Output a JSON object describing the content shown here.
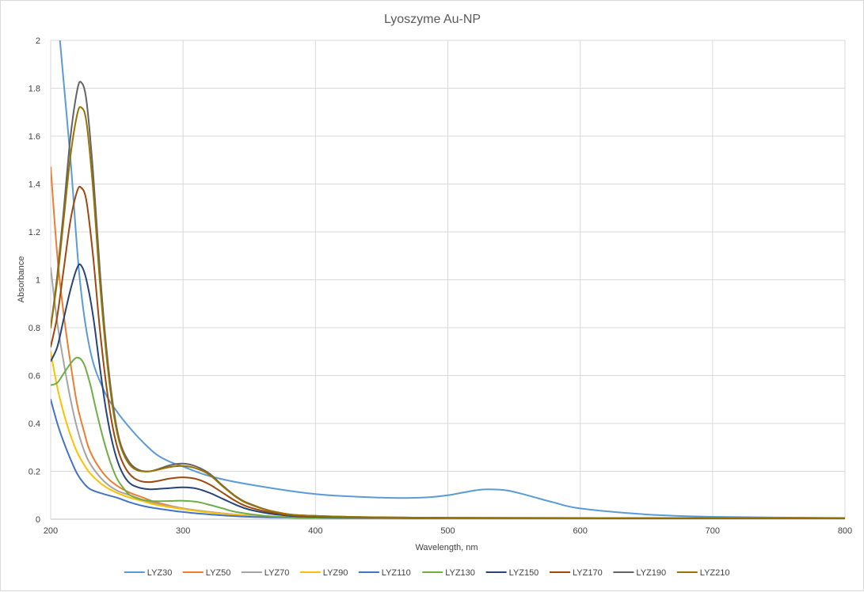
{
  "chart_data": {
    "type": "line",
    "title": "Lyoszyme Au-NP",
    "xlabel": "Wavelength, nm",
    "ylabel": "Absorbance",
    "xlim": [
      200,
      800
    ],
    "ylim": [
      0,
      2
    ],
    "x_ticks": [
      200,
      300,
      400,
      500,
      600,
      700,
      800
    ],
    "y_ticks": [
      0,
      0.2,
      0.4,
      0.6,
      0.8,
      1,
      1.2,
      1.4,
      1.6,
      1.8,
      2
    ],
    "grid": true,
    "legend_position": "bottom",
    "series": [
      {
        "name": "LYZ30",
        "color": "#5b9bd5",
        "points": [
          [
            207,
            2.0
          ],
          [
            215,
            1.5
          ],
          [
            222,
            1.0
          ],
          [
            230,
            0.7
          ],
          [
            240,
            0.54
          ],
          [
            250,
            0.45
          ],
          [
            260,
            0.38
          ],
          [
            270,
            0.32
          ],
          [
            280,
            0.27
          ],
          [
            290,
            0.24
          ],
          [
            300,
            0.22
          ],
          [
            320,
            0.18
          ],
          [
            350,
            0.145
          ],
          [
            400,
            0.105
          ],
          [
            450,
            0.09
          ],
          [
            480,
            0.09
          ],
          [
            500,
            0.1
          ],
          [
            520,
            0.12
          ],
          [
            530,
            0.125
          ],
          [
            545,
            0.12
          ],
          [
            560,
            0.1
          ],
          [
            580,
            0.07
          ],
          [
            600,
            0.045
          ],
          [
            650,
            0.02
          ],
          [
            700,
            0.01
          ],
          [
            800,
            0.005
          ]
        ]
      },
      {
        "name": "LYZ50",
        "color": "#ed7d31",
        "points": [
          [
            200,
            1.47
          ],
          [
            205,
            1.1
          ],
          [
            210,
            0.85
          ],
          [
            215,
            0.65
          ],
          [
            220,
            0.48
          ],
          [
            225,
            0.37
          ],
          [
            230,
            0.28
          ],
          [
            240,
            0.19
          ],
          [
            250,
            0.14
          ],
          [
            260,
            0.11
          ],
          [
            270,
            0.09
          ],
          [
            280,
            0.07
          ],
          [
            300,
            0.045
          ],
          [
            320,
            0.03
          ],
          [
            350,
            0.015
          ],
          [
            400,
            0.007
          ],
          [
            500,
            0.004
          ],
          [
            800,
            0.002
          ]
        ]
      },
      {
        "name": "LYZ70",
        "color": "#a5a5a5",
        "points": [
          [
            200,
            1.05
          ],
          [
            205,
            0.82
          ],
          [
            210,
            0.65
          ],
          [
            215,
            0.5
          ],
          [
            220,
            0.38
          ],
          [
            225,
            0.29
          ],
          [
            230,
            0.23
          ],
          [
            240,
            0.16
          ],
          [
            250,
            0.12
          ],
          [
            260,
            0.1
          ],
          [
            270,
            0.08
          ],
          [
            280,
            0.065
          ],
          [
            300,
            0.045
          ],
          [
            320,
            0.03
          ],
          [
            350,
            0.015
          ],
          [
            400,
            0.007
          ],
          [
            500,
            0.004
          ],
          [
            800,
            0.002
          ]
        ]
      },
      {
        "name": "LYZ90",
        "color": "#ffc000",
        "points": [
          [
            200,
            0.7
          ],
          [
            205,
            0.55
          ],
          [
            210,
            0.44
          ],
          [
            215,
            0.35
          ],
          [
            220,
            0.28
          ],
          [
            225,
            0.23
          ],
          [
            230,
            0.19
          ],
          [
            240,
            0.14
          ],
          [
            250,
            0.11
          ],
          [
            260,
            0.09
          ],
          [
            270,
            0.075
          ],
          [
            280,
            0.06
          ],
          [
            300,
            0.042
          ],
          [
            320,
            0.028
          ],
          [
            350,
            0.014
          ],
          [
            400,
            0.007
          ],
          [
            500,
            0.004
          ],
          [
            800,
            0.002
          ]
        ]
      },
      {
        "name": "LYZ110",
        "color": "#4472c4",
        "points": [
          [
            200,
            0.5
          ],
          [
            205,
            0.4
          ],
          [
            210,
            0.32
          ],
          [
            215,
            0.25
          ],
          [
            220,
            0.19
          ],
          [
            225,
            0.15
          ],
          [
            230,
            0.125
          ],
          [
            240,
            0.105
          ],
          [
            250,
            0.09
          ],
          [
            260,
            0.07
          ],
          [
            270,
            0.055
          ],
          [
            280,
            0.045
          ],
          [
            300,
            0.03
          ],
          [
            320,
            0.02
          ],
          [
            350,
            0.01
          ],
          [
            400,
            0.005
          ],
          [
            500,
            0.003
          ],
          [
            800,
            0.002
          ]
        ]
      },
      {
        "name": "LYZ130",
        "color": "#70ad47",
        "points": [
          [
            200,
            0.56
          ],
          [
            205,
            0.57
          ],
          [
            210,
            0.61
          ],
          [
            215,
            0.65
          ],
          [
            220,
            0.675
          ],
          [
            225,
            0.65
          ],
          [
            230,
            0.56
          ],
          [
            235,
            0.44
          ],
          [
            240,
            0.33
          ],
          [
            245,
            0.24
          ],
          [
            250,
            0.17
          ],
          [
            255,
            0.13
          ],
          [
            260,
            0.1
          ],
          [
            270,
            0.08
          ],
          [
            280,
            0.075
          ],
          [
            290,
            0.076
          ],
          [
            300,
            0.077
          ],
          [
            310,
            0.073
          ],
          [
            320,
            0.06
          ],
          [
            330,
            0.045
          ],
          [
            340,
            0.03
          ],
          [
            360,
            0.015
          ],
          [
            380,
            0.008
          ],
          [
            400,
            0.005
          ],
          [
            500,
            0.003
          ],
          [
            800,
            0.002
          ]
        ]
      },
      {
        "name": "LYZ150",
        "color": "#264478",
        "points": [
          [
            200,
            0.66
          ],
          [
            205,
            0.72
          ],
          [
            210,
            0.84
          ],
          [
            215,
            0.96
          ],
          [
            220,
            1.05
          ],
          [
            223,
            1.06
          ],
          [
            227,
            1.0
          ],
          [
            232,
            0.85
          ],
          [
            237,
            0.64
          ],
          [
            242,
            0.45
          ],
          [
            247,
            0.31
          ],
          [
            252,
            0.22
          ],
          [
            258,
            0.16
          ],
          [
            265,
            0.135
          ],
          [
            275,
            0.125
          ],
          [
            290,
            0.13
          ],
          [
            300,
            0.133
          ],
          [
            310,
            0.128
          ],
          [
            320,
            0.11
          ],
          [
            330,
            0.085
          ],
          [
            340,
            0.06
          ],
          [
            350,
            0.04
          ],
          [
            370,
            0.02
          ],
          [
            400,
            0.01
          ],
          [
            500,
            0.005
          ],
          [
            800,
            0.003
          ]
        ]
      },
      {
        "name": "LYZ170",
        "color": "#9e480e",
        "points": [
          [
            200,
            0.72
          ],
          [
            205,
            0.85
          ],
          [
            210,
            1.05
          ],
          [
            215,
            1.25
          ],
          [
            220,
            1.37
          ],
          [
            223,
            1.385
          ],
          [
            227,
            1.33
          ],
          [
            232,
            1.1
          ],
          [
            237,
            0.8
          ],
          [
            242,
            0.56
          ],
          [
            247,
            0.38
          ],
          [
            252,
            0.27
          ],
          [
            258,
            0.2
          ],
          [
            265,
            0.165
          ],
          [
            275,
            0.155
          ],
          [
            290,
            0.17
          ],
          [
            300,
            0.175
          ],
          [
            310,
            0.168
          ],
          [
            320,
            0.145
          ],
          [
            330,
            0.11
          ],
          [
            340,
            0.075
          ],
          [
            350,
            0.05
          ],
          [
            370,
            0.025
          ],
          [
            400,
            0.012
          ],
          [
            500,
            0.006
          ],
          [
            800,
            0.004
          ]
        ]
      },
      {
        "name": "LYZ190",
        "color": "#636363",
        "points": [
          [
            200,
            0.8
          ],
          [
            205,
            1.02
          ],
          [
            210,
            1.3
          ],
          [
            215,
            1.6
          ],
          [
            220,
            1.79
          ],
          [
            223,
            1.825
          ],
          [
            227,
            1.75
          ],
          [
            232,
            1.45
          ],
          [
            237,
            1.05
          ],
          [
            242,
            0.72
          ],
          [
            247,
            0.48
          ],
          [
            252,
            0.33
          ],
          [
            258,
            0.25
          ],
          [
            265,
            0.21
          ],
          [
            275,
            0.2
          ],
          [
            290,
            0.225
          ],
          [
            300,
            0.232
          ],
          [
            310,
            0.22
          ],
          [
            320,
            0.19
          ],
          [
            330,
            0.14
          ],
          [
            340,
            0.095
          ],
          [
            350,
            0.065
          ],
          [
            370,
            0.03
          ],
          [
            400,
            0.014
          ],
          [
            500,
            0.006
          ],
          [
            800,
            0.004
          ]
        ]
      },
      {
        "name": "LYZ210",
        "color": "#997300",
        "points": [
          [
            200,
            0.8
          ],
          [
            205,
            1.0
          ],
          [
            210,
            1.26
          ],
          [
            215,
            1.52
          ],
          [
            220,
            1.69
          ],
          [
            223,
            1.72
          ],
          [
            227,
            1.66
          ],
          [
            232,
            1.38
          ],
          [
            237,
            1.0
          ],
          [
            242,
            0.69
          ],
          [
            247,
            0.46
          ],
          [
            252,
            0.32
          ],
          [
            258,
            0.24
          ],
          [
            265,
            0.205
          ],
          [
            275,
            0.2
          ],
          [
            290,
            0.218
          ],
          [
            300,
            0.222
          ],
          [
            310,
            0.212
          ],
          [
            320,
            0.185
          ],
          [
            330,
            0.137
          ],
          [
            340,
            0.093
          ],
          [
            350,
            0.063
          ],
          [
            370,
            0.03
          ],
          [
            400,
            0.014
          ],
          [
            500,
            0.006
          ],
          [
            800,
            0.004
          ]
        ]
      }
    ]
  }
}
